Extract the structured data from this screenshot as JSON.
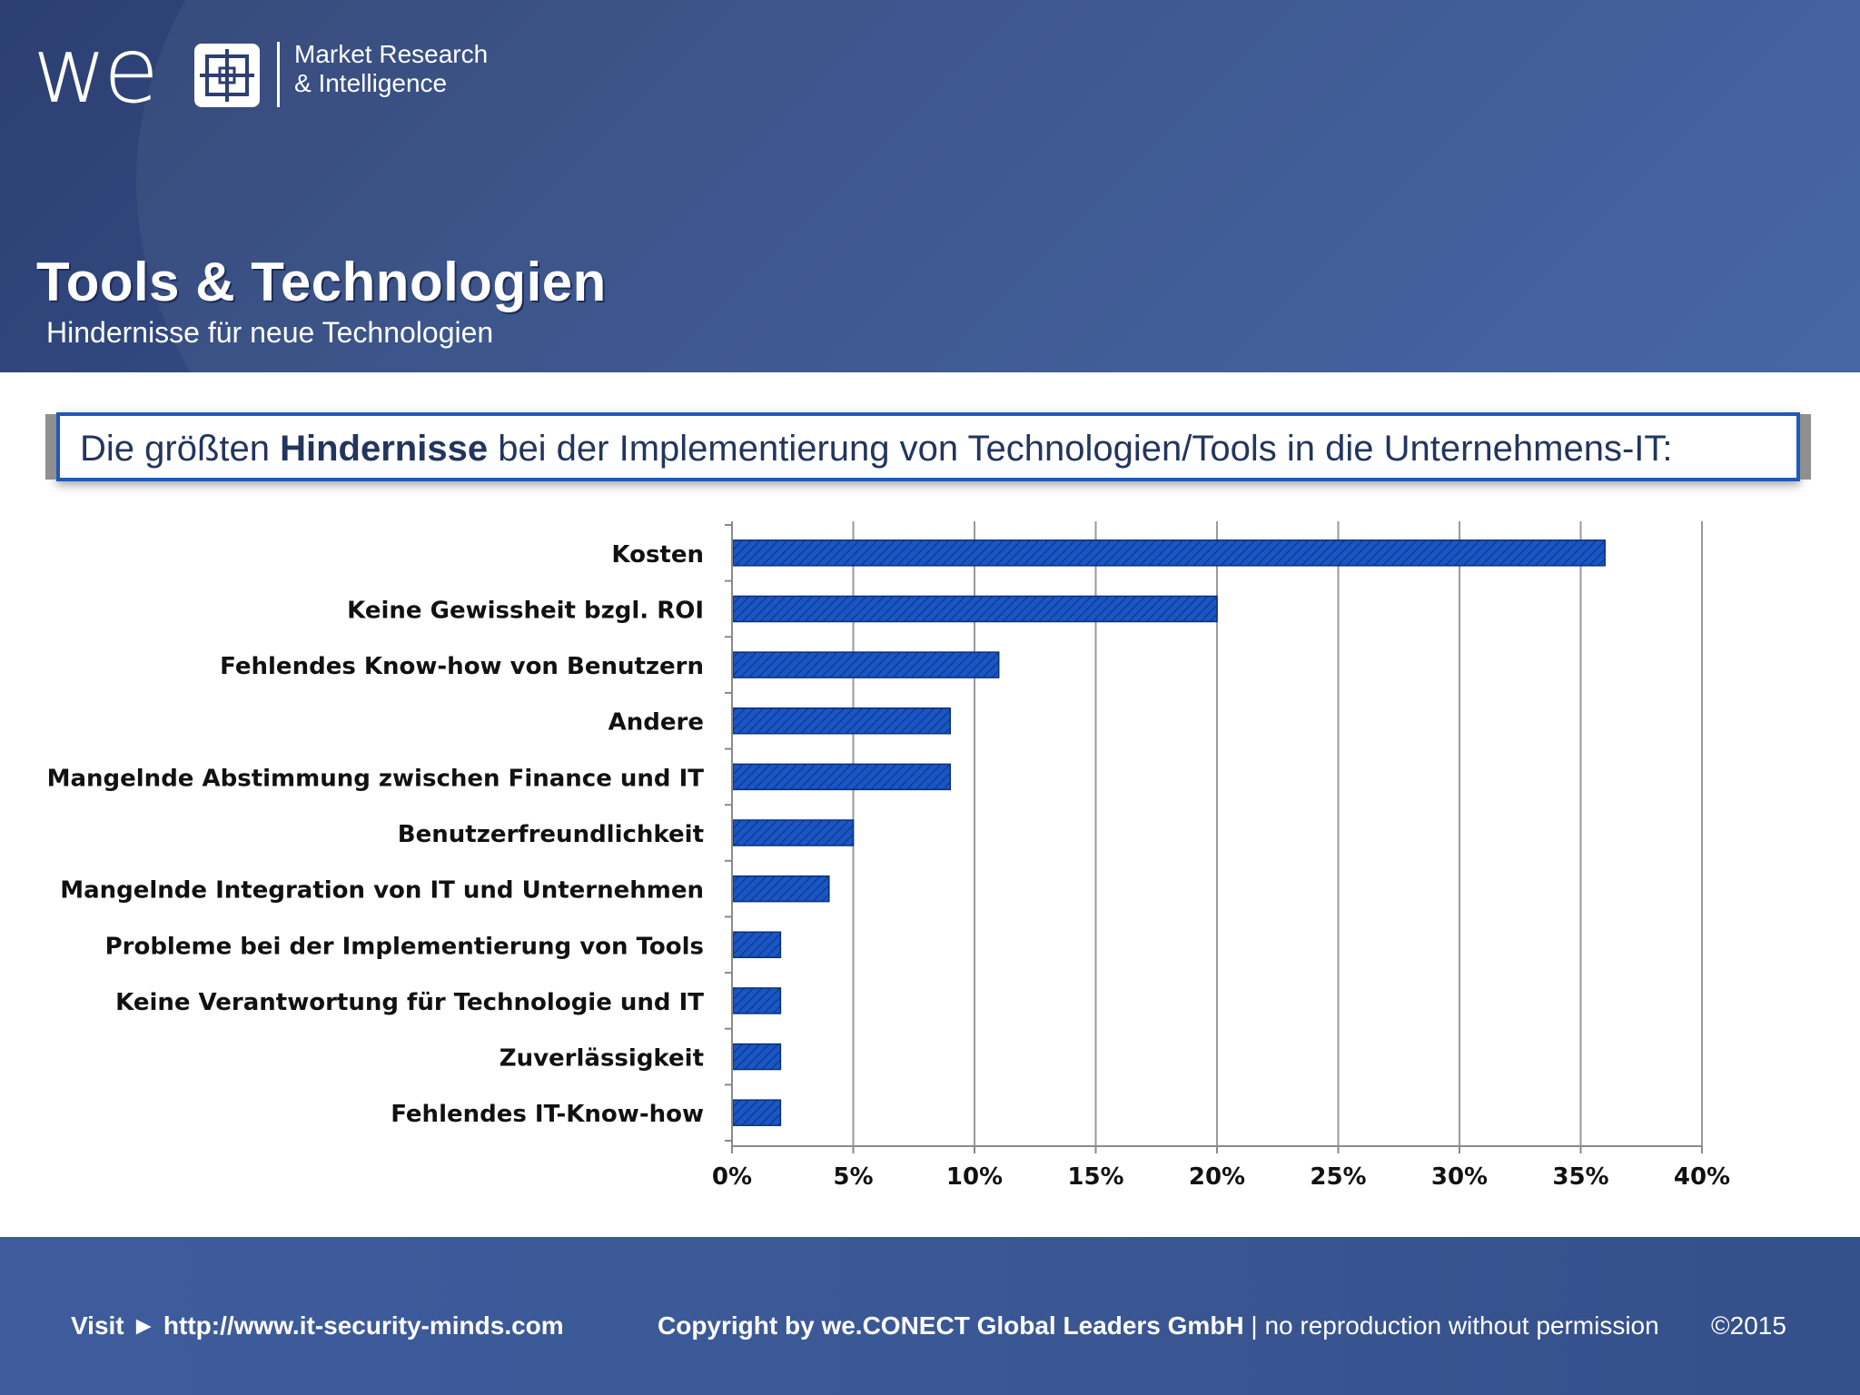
{
  "header": {
    "logo_text": "we",
    "logo_tag_line1": "Market Research",
    "logo_tag_line2": "& Intelligence",
    "title": "Tools & Technologien",
    "subtitle": "Hindernisse für neue Technologien"
  },
  "question": {
    "prefix": "Die größten ",
    "emphasis": "Hindernisse",
    "suffix": " bei der Implementierung von Technologien/Tools in die Unternehmens-IT:"
  },
  "chart_data": {
    "type": "bar",
    "orientation": "horizontal",
    "categories": [
      "Kosten",
      "Keine Gewissheit bzgl. ROI",
      "Fehlendes Know-how von Benutzern",
      "Andere",
      "Mangelnde Abstimmung zwischen Finance und IT",
      "Benutzerfreundlichkeit",
      "Mangelnde Integration von IT und Unternehmen",
      "Probleme bei der Implementierung von Tools",
      "Keine Verantwortung für Technologie und IT",
      "Zuverlässigkeit",
      "Fehlendes IT-Know-how"
    ],
    "values": [
      36,
      20,
      11,
      9,
      9,
      5,
      4,
      2,
      2,
      2,
      2
    ],
    "xlim": [
      0,
      40
    ],
    "xticks": [
      0,
      5,
      10,
      15,
      20,
      25,
      30,
      35,
      40
    ],
    "tick_labels": [
      "0%",
      "5%",
      "10%",
      "15%",
      "20%",
      "25%",
      "30%",
      "35%",
      "40%"
    ],
    "grid": true,
    "bar_color": "#1a56c4",
    "bar_edge": "#0c2f78",
    "grid_color": "#9a9a9a"
  },
  "footer": {
    "visit_label": "Visit ► http://www.it-security-minds.com",
    "copyright": "Copyright by we.CONECT Global Leaders GmbH",
    "notice": " | no reproduction without permission",
    "year": "©2015"
  }
}
